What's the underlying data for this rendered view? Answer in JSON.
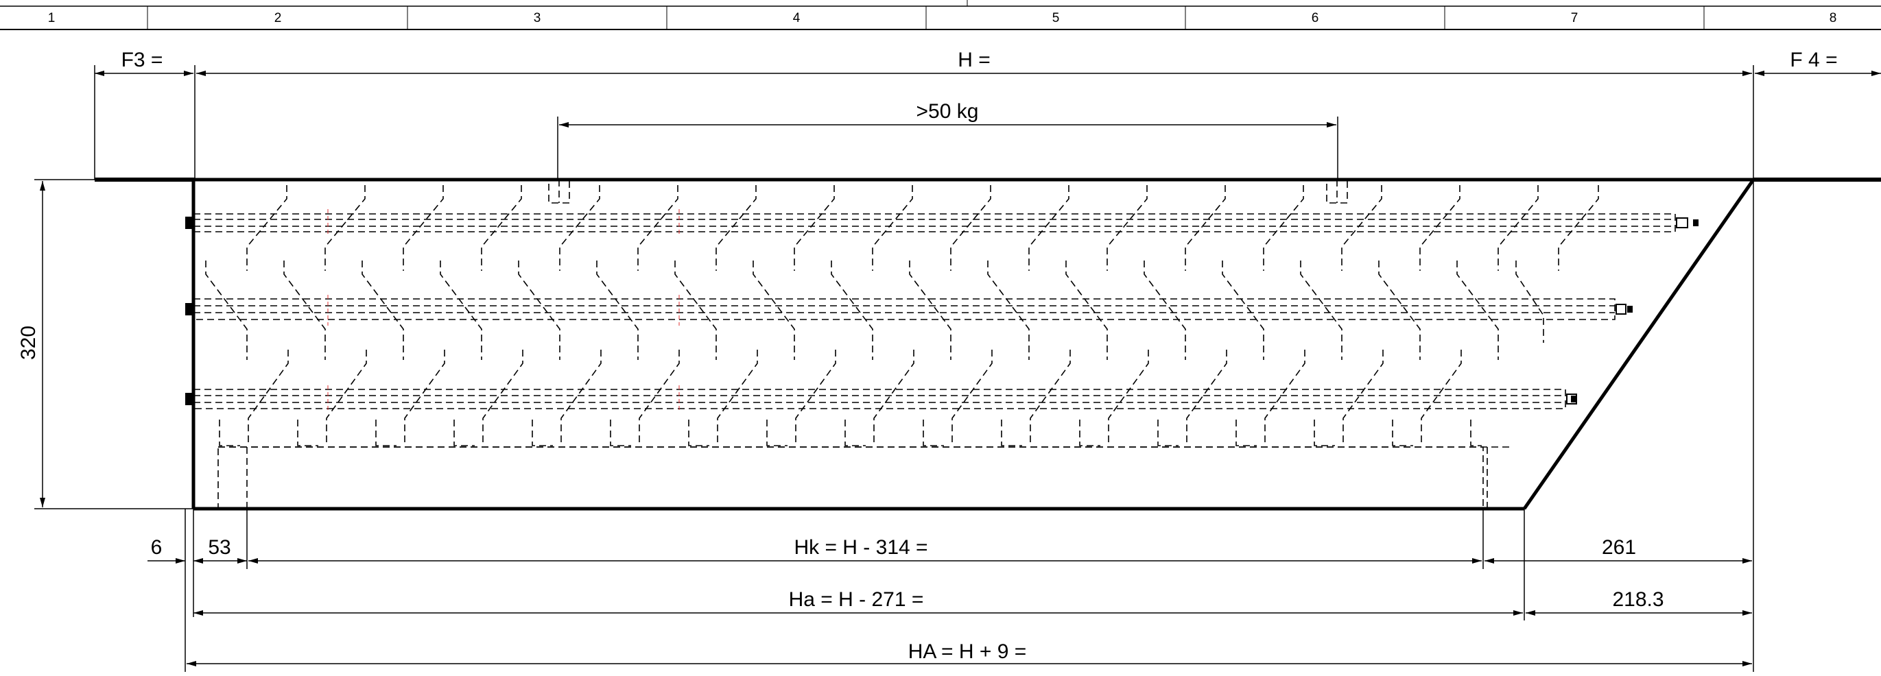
{
  "title_block": {
    "columns": [
      "1",
      "2",
      "3",
      "4",
      "5",
      "6",
      "7",
      "8"
    ]
  },
  "dimensions": {
    "f3": "F3 =",
    "h": "H =",
    "f4": "F 4 =",
    "weight": ">50 kg",
    "height": "320",
    "six": "6",
    "fifty_three": "53",
    "hk": "Hk = H - 314 =",
    "val_261": "261",
    "ha": "Ha = H - 271 =",
    "val_218": "218.3",
    "HA": "HA = H + 9 ="
  }
}
